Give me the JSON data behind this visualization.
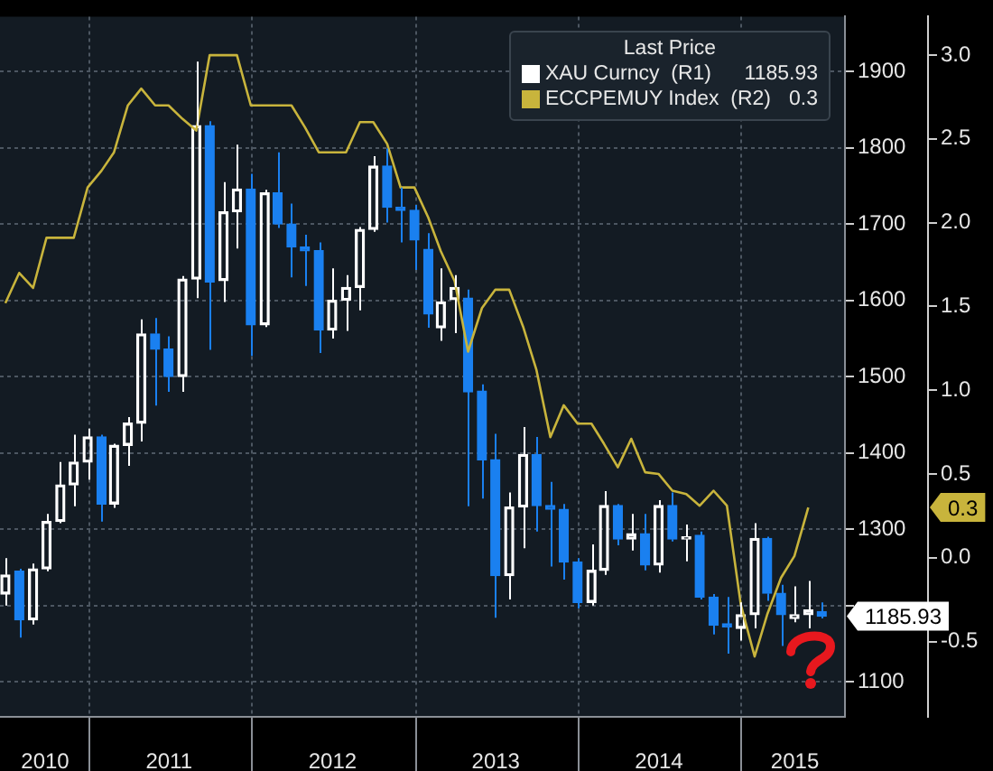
{
  "chart_data": {
    "type": "candlestick",
    "x": [
      "2010-06-30",
      "2010-07-31",
      "2010-08-31",
      "2010-09-30",
      "2010-10-31",
      "2010-11-30",
      "2010-12-31",
      "2011-01-31",
      "2011-02-28",
      "2011-03-31",
      "2011-04-30",
      "2011-05-31",
      "2011-06-30",
      "2011-07-31",
      "2011-08-31",
      "2011-09-30",
      "2011-10-31",
      "2011-11-30",
      "2011-12-31",
      "2012-01-31",
      "2012-02-29",
      "2012-03-31",
      "2012-04-30",
      "2012-05-31",
      "2012-06-30",
      "2012-07-31",
      "2012-08-31",
      "2012-09-30",
      "2012-10-31",
      "2012-11-30",
      "2012-12-31",
      "2013-01-31",
      "2013-02-28",
      "2013-03-31",
      "2013-04-30",
      "2013-05-31",
      "2013-06-30",
      "2013-07-31",
      "2013-08-31",
      "2013-09-30",
      "2013-10-31",
      "2013-11-30",
      "2013-12-31",
      "2014-01-31",
      "2014-02-28",
      "2014-03-31",
      "2014-04-30",
      "2014-05-31",
      "2014-06-30",
      "2014-07-31",
      "2014-08-31",
      "2014-09-30",
      "2014-10-31",
      "2014-11-30",
      "2014-12-31",
      "2015-01-31",
      "2015-02-28",
      "2015-03-31",
      "2015-04-30",
      "2015-05-31",
      "2015-06-30"
    ],
    "series": [
      {
        "name": "XAU Curncy  (R1)",
        "color": "#ffffff",
        "ohlc": [
          [
            1215,
            1262,
            1200,
            1240
          ],
          [
            1245,
            1248,
            1158,
            1181
          ],
          [
            1181,
            1255,
            1175,
            1248
          ],
          [
            1248,
            1320,
            1245,
            1310
          ],
          [
            1310,
            1388,
            1308,
            1358
          ],
          [
            1358,
            1424,
            1330,
            1388
          ],
          [
            1388,
            1432,
            1365,
            1421
          ],
          [
            1421,
            1424,
            1310,
            1333
          ],
          [
            1333,
            1412,
            1328,
            1410
          ],
          [
            1410,
            1447,
            1383,
            1439
          ],
          [
            1439,
            1575,
            1415,
            1556
          ],
          [
            1556,
            1577,
            1462,
            1536
          ],
          [
            1536,
            1553,
            1480,
            1500
          ],
          [
            1500,
            1632,
            1480,
            1628
          ],
          [
            1628,
            1913,
            1603,
            1829
          ],
          [
            1829,
            1835,
            1535,
            1624
          ],
          [
            1626,
            1755,
            1598,
            1716
          ],
          [
            1716,
            1804,
            1668,
            1746
          ],
          [
            1746,
            1766,
            1527,
            1568
          ],
          [
            1568,
            1745,
            1565,
            1741
          ],
          [
            1741,
            1794,
            1695,
            1700
          ],
          [
            1700,
            1727,
            1630,
            1670
          ],
          [
            1670,
            1686,
            1619,
            1665
          ],
          [
            1665,
            1676,
            1531,
            1561
          ],
          [
            1561,
            1642,
            1550,
            1600
          ],
          [
            1600,
            1633,
            1560,
            1617
          ],
          [
            1617,
            1696,
            1587,
            1693
          ],
          [
            1693,
            1789,
            1690,
            1776
          ],
          [
            1776,
            1799,
            1702,
            1722
          ],
          [
            1722,
            1748,
            1676,
            1718
          ],
          [
            1718,
            1725,
            1640,
            1679
          ],
          [
            1667,
            1688,
            1564,
            1582
          ],
          [
            1564,
            1642,
            1547,
            1598
          ],
          [
            1601,
            1633,
            1557,
            1617
          ],
          [
            1603,
            1614,
            1330,
            1480
          ],
          [
            1481,
            1490,
            1340,
            1391
          ],
          [
            1391,
            1425,
            1184,
            1239
          ],
          [
            1239,
            1348,
            1208,
            1329
          ],
          [
            1329,
            1434,
            1275,
            1398
          ],
          [
            1398,
            1421,
            1297,
            1331
          ],
          [
            1331,
            1362,
            1251,
            1326
          ],
          [
            1326,
            1333,
            1234,
            1257
          ],
          [
            1257,
            1262,
            1196,
            1204
          ],
          [
            1204,
            1280,
            1200,
            1246
          ],
          [
            1246,
            1350,
            1240,
            1331
          ],
          [
            1331,
            1333,
            1279,
            1287
          ],
          [
            1287,
            1320,
            1272,
            1294
          ],
          [
            1294,
            1320,
            1246,
            1253
          ],
          [
            1253,
            1338,
            1243,
            1331
          ],
          [
            1331,
            1348,
            1284,
            1287
          ],
          [
            1287,
            1306,
            1258,
            1290
          ],
          [
            1292,
            1297,
            1208,
            1211
          ],
          [
            1211,
            1215,
            1162,
            1174
          ],
          [
            1176,
            1211,
            1137,
            1172
          ],
          [
            1170,
            1204,
            1154,
            1188
          ],
          [
            1188,
            1308,
            1170,
            1288
          ],
          [
            1288,
            1290,
            1206,
            1216
          ],
          [
            1216,
            1227,
            1147,
            1188
          ],
          [
            1183,
            1225,
            1178,
            1188
          ],
          [
            1188,
            1232,
            1170,
            1194
          ],
          [
            1192,
            1204,
            1183,
            1185.93
          ]
        ],
        "colors": [
          "#ffffff",
          "#1a80f0",
          "#ffffff",
          "#ffffff",
          "#ffffff",
          "#ffffff",
          "#ffffff",
          "#1a80f0",
          "#ffffff",
          "#ffffff",
          "#ffffff",
          "#1a80f0",
          "#1a80f0",
          "#ffffff",
          "#ffffff",
          "#1a80f0",
          "#ffffff",
          "#ffffff",
          "#1a80f0",
          "#ffffff",
          "#1a80f0",
          "#1a80f0",
          "#1a80f0",
          "#1a80f0",
          "#ffffff",
          "#ffffff",
          "#ffffff",
          "#ffffff",
          "#1a80f0",
          "#1a80f0",
          "#1a80f0",
          "#1a80f0",
          "#ffffff",
          "#ffffff",
          "#1a80f0",
          "#1a80f0",
          "#1a80f0",
          "#ffffff",
          "#ffffff",
          "#1a80f0",
          "#1a80f0",
          "#1a80f0",
          "#1a80f0",
          "#ffffff",
          "#ffffff",
          "#1a80f0",
          "#ffffff",
          "#1a80f0",
          "#ffffff",
          "#1a80f0",
          "#ffffff",
          "#1a80f0",
          "#1a80f0",
          "#1a80f0",
          "#ffffff",
          "#ffffff",
          "#1a80f0",
          "#1a80f0",
          "#ffffff",
          "#ffffff",
          "#1a80f0"
        ]
      },
      {
        "type": "line",
        "name": "ECCPEMUY Index  (R2)",
        "color": "#c8b43c",
        "axis": "y2",
        "values": [
          1.52,
          1.7,
          1.61,
          1.91,
          1.91,
          1.91,
          2.21,
          2.31,
          2.42,
          2.7,
          2.8,
          2.7,
          2.7,
          2.62,
          2.55,
          3.0,
          3.0,
          3.0,
          2.7,
          2.7,
          2.7,
          2.7,
          2.57,
          2.42,
          2.42,
          2.42,
          2.6,
          2.6,
          2.47,
          2.21,
          2.21,
          2.03,
          1.83,
          1.65,
          1.23,
          1.49,
          1.6,
          1.6,
          1.38,
          1.12,
          0.72,
          0.91,
          0.8,
          0.8,
          0.68,
          0.54,
          0.71,
          0.51,
          0.5,
          0.4,
          0.38,
          0.31,
          0.4,
          0.31,
          -0.28,
          -0.59,
          -0.34,
          -0.12,
          0.01,
          0.3,
          null
        ]
      }
    ],
    "xlim": [
      "2010-06-18",
      "2015-08-21"
    ],
    "xticks": [
      {
        "value": "2010-09-27",
        "label": "2010"
      },
      {
        "value": "2010-12-31",
        "label": null
      },
      {
        "value": "2011-07-01",
        "label": "2011"
      },
      {
        "value": "2011-12-31",
        "label": null
      },
      {
        "value": "2012-07-01",
        "label": "2012"
      },
      {
        "value": "2012-12-31",
        "label": null
      },
      {
        "value": "2013-07-01",
        "label": "2013"
      },
      {
        "value": "2013-12-31",
        "label": null
      },
      {
        "value": "2014-07-01",
        "label": "2014"
      },
      {
        "value": "2014-12-31",
        "label": null
      },
      {
        "value": "2015-05-01",
        "label": "2015"
      }
    ],
    "ylim": [
      1054,
      1972
    ],
    "yticks": [
      1100,
      {
        "value": 1200,
        "label": null
      },
      1300,
      1400,
      1500,
      1600,
      1700,
      1800,
      1900
    ],
    "y2lim": [
      -0.95,
      3.23
    ],
    "y2ticks": [
      -0.5,
      {
        "value": 0,
        "label": "0.0"
      },
      0.5,
      {
        "value": 1,
        "label": "1.0"
      },
      1.5,
      {
        "value": 2,
        "label": "2.0"
      },
      2.5,
      {
        "value": 3,
        "label": "3.0"
      }
    ],
    "legend_title": "Last Price",
    "annotations": [
      "1185.93",
      "0.3"
    ],
    "grid": true,
    "legend": "top right"
  }
}
